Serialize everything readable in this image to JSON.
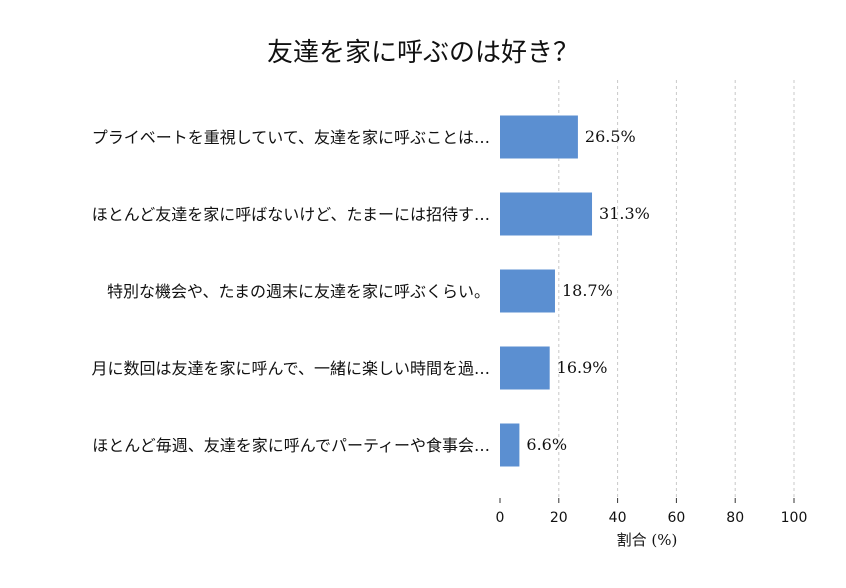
{
  "chart_data": {
    "type": "bar",
    "orientation": "horizontal",
    "title": "友達を家に呼ぶのは好き？",
    "categories": [
      "プライベートを重視していて、友達を家に呼ぶことは…",
      "ほとんど友達を家に呼ばないけど、たまーには招待す…",
      "特別な機会や、たまの週末に友達を家に呼ぶくらい。",
      "月に数回は友達を家に呼んで、一緒に楽しい時間を過…",
      "ほとんど毎週、友達を家に呼んでパーティーや食事会…"
    ],
    "values": [
      26.5,
      31.3,
      18.7,
      16.9,
      6.6
    ],
    "value_labels": [
      "26.5%",
      "31.3%",
      "18.7%",
      "16.9%",
      "6.6%"
    ],
    "xlabel": "割合 (%)",
    "ylabel": "",
    "xlim": [
      0,
      100
    ],
    "xticks": [
      "0",
      "20",
      "40",
      "60",
      "80",
      "100"
    ],
    "grid": true,
    "bar_color": "#5b8fd1"
  }
}
